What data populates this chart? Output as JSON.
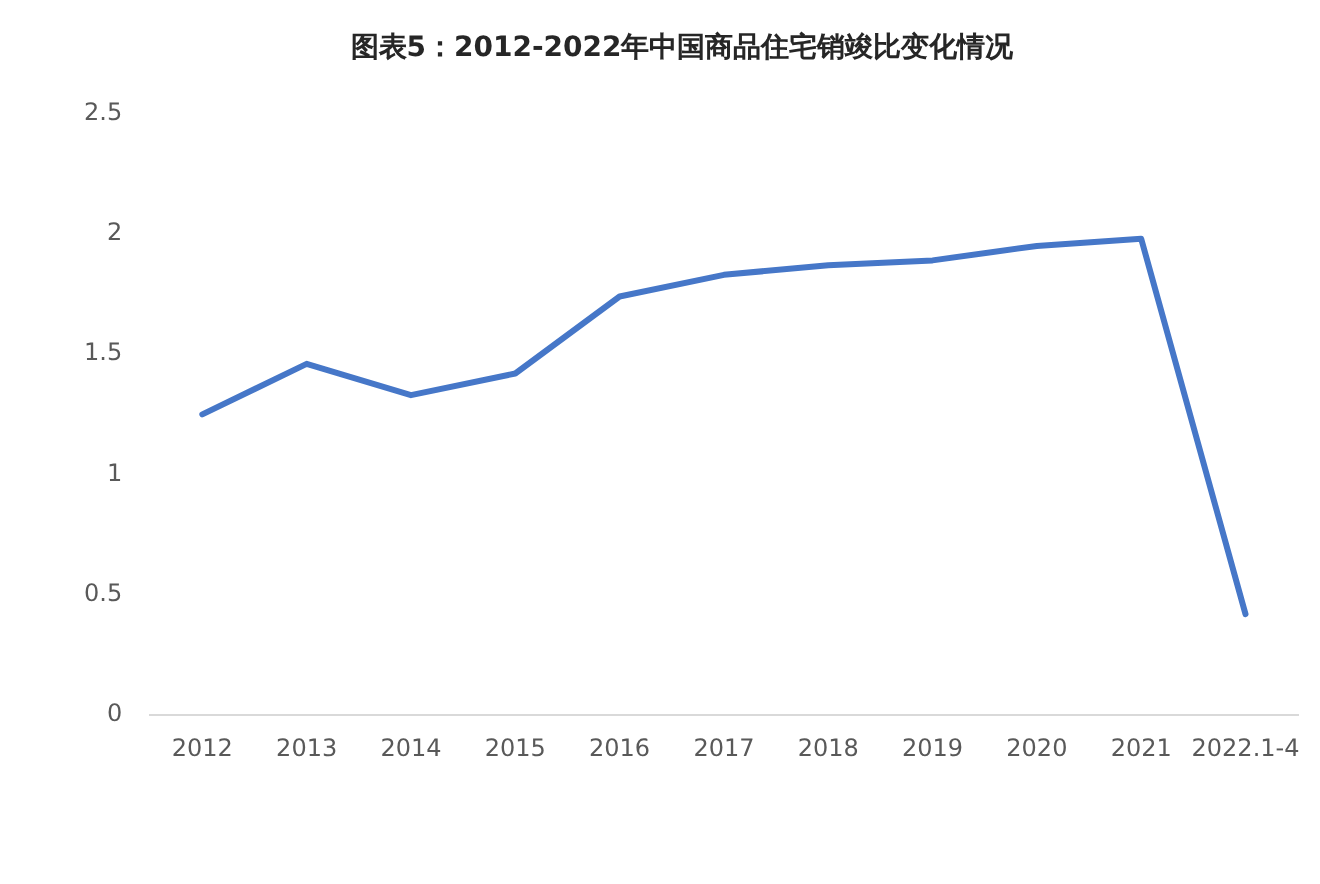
{
  "chart_data": {
    "type": "line",
    "title": "图表5：2012-2022年中国商品住宅销竣比变化情况",
    "categories": [
      "2012",
      "2013",
      "2014",
      "2015",
      "2016",
      "2017",
      "2018",
      "2019",
      "2020",
      "2021",
      "2022.1-4"
    ],
    "series": [
      {
        "color": "#4677c8",
        "values": [
          1.25,
          1.46,
          1.33,
          1.42,
          1.74,
          1.83,
          1.87,
          1.89,
          1.95,
          1.98,
          0.42
        ]
      }
    ],
    "ylim": [
      0,
      2.5
    ],
    "yticks": [
      0,
      0.5,
      1,
      1.5,
      2,
      2.5
    ],
    "grid": false,
    "marker": "none",
    "line_style": "solid"
  }
}
